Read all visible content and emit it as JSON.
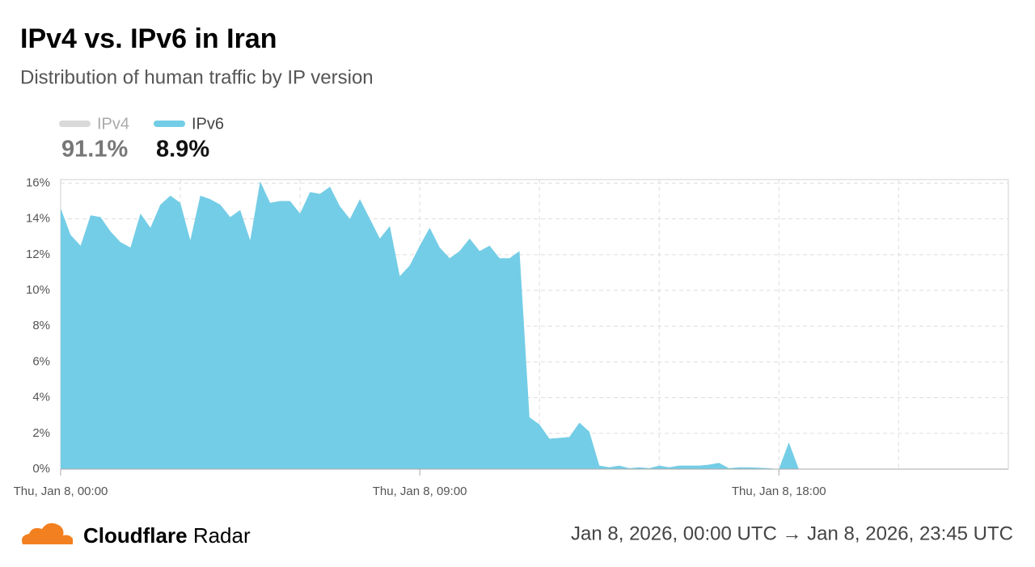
{
  "chart_data": {
    "type": "area",
    "title": "IPv4 vs. IPv6 in Iran",
    "subtitle": "Distribution of human traffic by IP version",
    "x": [
      "00:00",
      "00:15",
      "00:30",
      "00:45",
      "01:00",
      "01:15",
      "01:30",
      "01:45",
      "02:00",
      "02:15",
      "02:30",
      "02:45",
      "03:00",
      "03:15",
      "03:30",
      "03:45",
      "04:00",
      "04:15",
      "04:30",
      "04:45",
      "05:00",
      "05:15",
      "05:30",
      "05:45",
      "06:00",
      "06:15",
      "06:30",
      "06:45",
      "07:00",
      "07:15",
      "07:30",
      "07:45",
      "08:00",
      "08:15",
      "08:30",
      "08:45",
      "09:00",
      "09:15",
      "09:30",
      "09:45",
      "10:00",
      "10:15",
      "10:30",
      "10:45",
      "11:00",
      "11:15",
      "11:30",
      "11:45",
      "12:00",
      "12:15",
      "12:30",
      "12:45",
      "13:00",
      "13:15",
      "13:30",
      "13:45",
      "14:00",
      "14:15",
      "14:30",
      "14:45",
      "15:00",
      "15:15",
      "15:30",
      "15:45",
      "16:00",
      "16:15",
      "16:30",
      "16:45",
      "17:00",
      "17:15",
      "17:30",
      "17:45",
      "18:00",
      "18:15",
      "18:30"
    ],
    "series": [
      {
        "name": "IPv4",
        "color": "#d9d9d9",
        "total": 91.1,
        "total_label": "91.1%",
        "total_color": "#777777"
      },
      {
        "name": "IPv6",
        "color": "#74cde6",
        "total": 8.9,
        "total_label": "8.9%",
        "total_color": "#111111",
        "values": [
          14.6,
          13.1,
          12.5,
          14.2,
          14.1,
          13.3,
          12.7,
          12.4,
          14.3,
          13.5,
          14.8,
          15.3,
          14.9,
          12.8,
          15.3,
          15.1,
          14.8,
          14.1,
          14.5,
          12.8,
          16.1,
          14.9,
          15.0,
          15.0,
          14.3,
          15.5,
          15.4,
          15.8,
          14.7,
          14.0,
          15.1,
          14.0,
          12.9,
          13.6,
          10.8,
          11.4,
          12.5,
          13.5,
          12.4,
          11.8,
          12.2,
          12.9,
          12.2,
          12.5,
          11.8,
          11.8,
          12.2,
          2.9,
          2.5,
          1.7,
          1.75,
          1.8,
          2.6,
          2.1,
          0.2,
          0.1,
          0.2,
          0.05,
          0.1,
          0.05,
          0.2,
          0.1,
          0.2,
          0.2,
          0.2,
          0.25,
          0.35,
          0.05,
          0.1,
          0.1,
          0.08,
          0.05,
          0.0,
          1.5,
          0
        ]
      }
    ],
    "xlim": [
      "00:00",
      "23:45"
    ],
    "xticks": [
      {
        "value": "00:00",
        "label": "Thu, Jan 8, 00:00"
      },
      {
        "value": "03:00",
        "label": null
      },
      {
        "value": "06:00",
        "label": null
      },
      {
        "value": "09:00",
        "label": "Thu, Jan 8, 09:00"
      },
      {
        "value": "12:00",
        "label": null
      },
      {
        "value": "15:00",
        "label": null
      },
      {
        "value": "18:00",
        "label": "Thu, Jan 8, 18:00"
      },
      {
        "value": "21:00",
        "label": null
      }
    ],
    "ylim": [
      0,
      16.2
    ],
    "yticks": [
      {
        "value": 0,
        "label": "0%"
      },
      {
        "value": 2,
        "label": "2%"
      },
      {
        "value": 4,
        "label": "4%"
      },
      {
        "value": 6,
        "label": "6%"
      },
      {
        "value": 8,
        "label": "8%"
      },
      {
        "value": 10,
        "label": "10%"
      },
      {
        "value": 12,
        "label": "12%"
      },
      {
        "value": 14,
        "label": "14%"
      },
      {
        "value": 16,
        "label": "16%"
      }
    ],
    "grid": true
  },
  "footer": {
    "brand": "Cloudflare",
    "product": "Radar",
    "range": "Jan 8, 2026, 00:00 UTC → Jan 8, 2026, 23:45 UTC"
  }
}
